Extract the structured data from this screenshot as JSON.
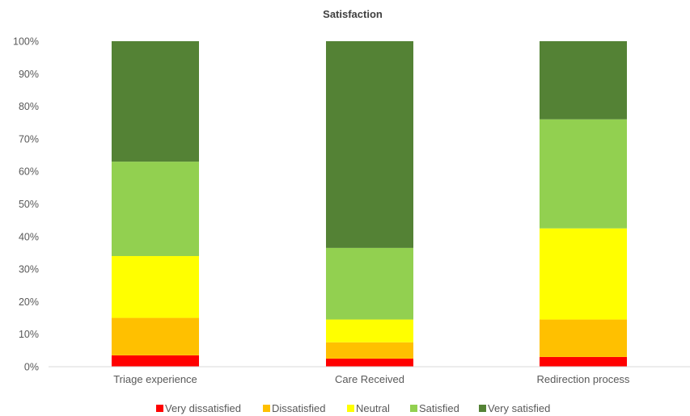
{
  "chart_data": {
    "type": "bar",
    "stacked": true,
    "percent": true,
    "title": "Satisfaction",
    "categories": [
      "Triage experience",
      "Care Received",
      "Redirection process"
    ],
    "series": [
      {
        "name": "Very dissatisfied",
        "color": "#ff0000",
        "values": [
          3.5,
          2.5,
          3
        ]
      },
      {
        "name": "Dissatisfied",
        "color": "#ffc000",
        "values": [
          11.5,
          5,
          11.5
        ]
      },
      {
        "name": "Neutral",
        "color": "#ffff00",
        "values": [
          19,
          7,
          28
        ]
      },
      {
        "name": "Satisfied",
        "color": "#92d050",
        "values": [
          29,
          22,
          33.5
        ]
      },
      {
        "name": "Very satisfied",
        "color": "#548235",
        "values": [
          37,
          63.5,
          24
        ]
      }
    ],
    "ylim": [
      0,
      100
    ],
    "yticks": [
      "0%",
      "10%",
      "20%",
      "30%",
      "40%",
      "50%",
      "60%",
      "70%",
      "80%",
      "90%",
      "100%"
    ],
    "grid": false,
    "legend_position": "bottom"
  }
}
